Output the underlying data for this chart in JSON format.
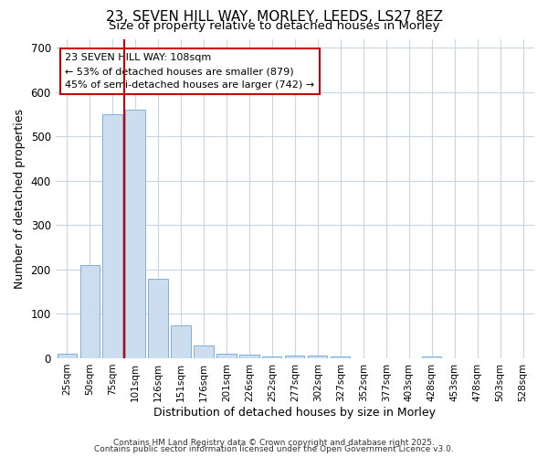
{
  "title_line1": "23, SEVEN HILL WAY, MORLEY, LEEDS, LS27 8EZ",
  "title_line2": "Size of property relative to detached houses in Morley",
  "xlabel": "Distribution of detached houses by size in Morley",
  "ylabel": "Number of detached properties",
  "categories": [
    "25sqm",
    "50sqm",
    "75sqm",
    "101sqm",
    "126sqm",
    "151sqm",
    "176sqm",
    "201sqm",
    "226sqm",
    "252sqm",
    "277sqm",
    "302sqm",
    "327sqm",
    "352sqm",
    "377sqm",
    "403sqm",
    "428sqm",
    "453sqm",
    "478sqm",
    "503sqm",
    "528sqm"
  ],
  "values": [
    10,
    210,
    550,
    560,
    180,
    75,
    28,
    10,
    8,
    5,
    7,
    7,
    5,
    0,
    0,
    0,
    4,
    0,
    0,
    0,
    0
  ],
  "bar_color": "#ccddf0",
  "bar_edge_color": "#7db0d8",
  "bar_edge_width": 0.7,
  "red_line_index": 3,
  "red_line_color": "#cc0000",
  "annotation_text": "23 SEVEN HILL WAY: 108sqm\n← 53% of detached houses are smaller (879)\n45% of semi-detached houses are larger (742) →",
  "annotation_box_facecolor": "#ffffff",
  "annotation_box_edgecolor": "#cc0000",
  "ylim": [
    0,
    720
  ],
  "yticks": [
    0,
    100,
    200,
    300,
    400,
    500,
    600,
    700
  ],
  "grid_color": "#c8d4e8",
  "background_color": "#ffffff",
  "footer_line1": "Contains HM Land Registry data © Crown copyright and database right 2025.",
  "footer_line2": "Contains public sector information licensed under the Open Government Licence v3.0."
}
